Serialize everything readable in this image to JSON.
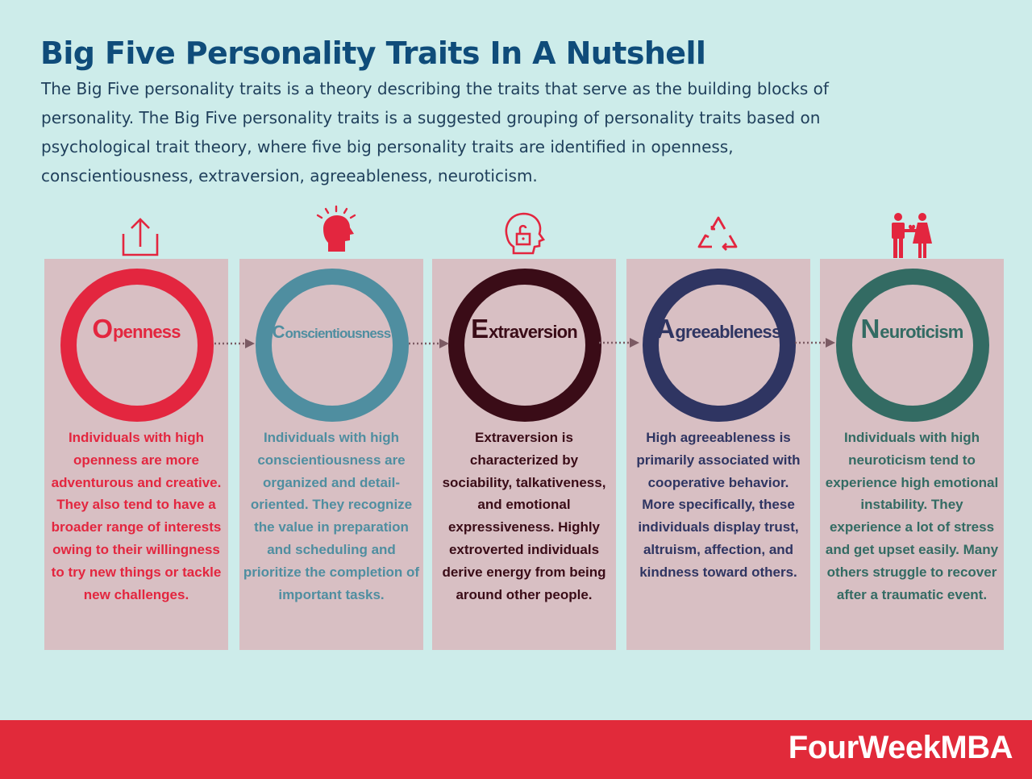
{
  "title": "Big Five Personality Traits In A Nutshell",
  "intro": "The Big Five personality traits is a theory describing the traits that serve as the building blocks of personality. The Big Five personality traits is a suggested grouping of personality traits based on psychological trait theory, where five big personality traits are identified in openness, conscientiousness, extraversion, agreeableness, neuroticism.",
  "traits": [
    {
      "initial": "O",
      "rest": "penness",
      "color": "#e3263f",
      "text_color": "#e3263f",
      "icon": "upload-icon",
      "description": "Individuals with high openness are more adventurous and creative. They also tend to have a broader range of interests owing to their willingness to try new things or tackle new challenges."
    },
    {
      "initial": "C",
      "rest": "onscientiousness",
      "color": "#4f8ea0",
      "text_color": "#4f8ea0",
      "icon": "head-thinking-icon",
      "description": "Individuals with high conscientiousness are organized and detail-oriented. They recognize the value in preparation and scheduling and prioritize the completion of important tasks."
    },
    {
      "initial": "E",
      "rest": "xtraversion",
      "color": "#3a0c17",
      "text_color": "#3a0c17",
      "icon": "unlocked-head-icon",
      "description": "Extraversion is characterized by sociability, talkativeness, and emotional expressiveness. Highly extroverted individuals derive energy from being around other people."
    },
    {
      "initial": "A",
      "rest": "greeableness",
      "color": "#2f3562",
      "text_color": "#2f3562",
      "icon": "recycle-icon",
      "description": "High agreeableness is primarily associated with cooperative behavior. More specifically, these individuals display trust, altruism, affection, and kindness toward others."
    },
    {
      "initial": "N",
      "rest": "euroticism",
      "color": "#336b63",
      "text_color": "#336b63",
      "icon": "couple-icon",
      "description": "Individuals with high neuroticism tend to experience high emotional instability. They experience a lot of stress and get upset easily. Many others struggle to recover after a traumatic event."
    }
  ],
  "icon_color": "#e3263f",
  "arrow_color": "#7b5a63",
  "brand": "FourWeekMBA"
}
